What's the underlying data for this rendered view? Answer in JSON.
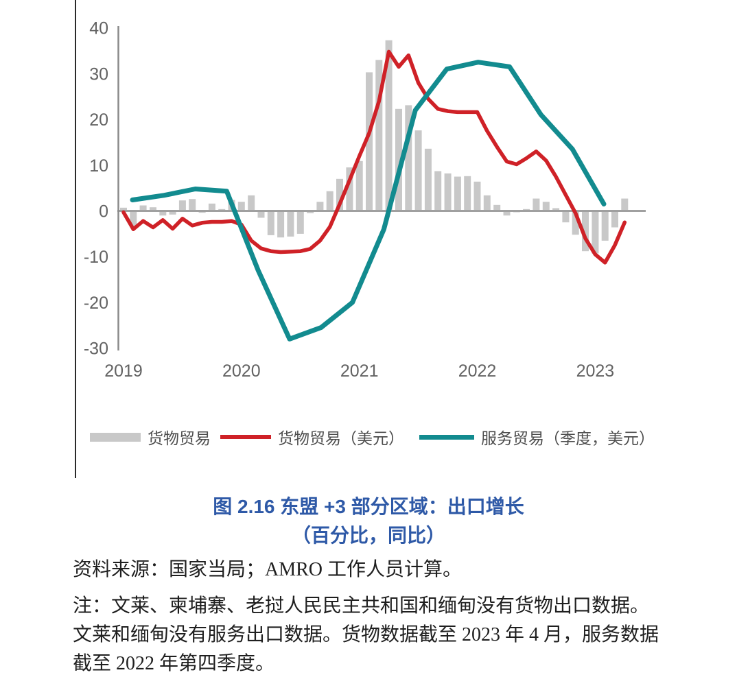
{
  "figure": {
    "title_line1": "图 2.16 东盟 +3 部分区域：出口增长",
    "title_line2": "（百分比，同比）",
    "title_color": "#2e59a7",
    "source_text": "资料来源：国家当局；AMRO 工作人员计算。",
    "note_text": "注：文莱、柬埔寨、老挝人民民主共和国和缅甸没有货物出口数据。\n文莱和缅甸没有服务出口数据。货物数据截至 2023 年 4 月，服务数据\n截至 2022 年第四季度。"
  },
  "legend": {
    "position": "below",
    "items": [
      {
        "key": "goods-trade-bars",
        "label": "货物贸易",
        "swatch": "bar",
        "color": "#c8c8c8"
      },
      {
        "key": "goods-trade-usd-line",
        "label": "货物贸易（美元）",
        "swatch": "line",
        "color": "#cf2127"
      },
      {
        "key": "services-trade-usd-line",
        "label": "服务贸易（季度，美元）",
        "swatch": "line",
        "color": "#128b8f"
      }
    ]
  },
  "chart_data": {
    "type": "bar+line",
    "title": "图 2.16 东盟 +3 部分区域：出口增长（百分比，同比）",
    "xlabel": "",
    "ylabel": "",
    "ylim": [
      -30,
      40
    ],
    "yticks": [
      40,
      30,
      20,
      10,
      0,
      -10,
      -20,
      -30
    ],
    "grid": false,
    "x_year_labels": [
      "2019",
      "2020",
      "2021",
      "2022",
      "2023"
    ],
    "axis_color": "#8a8a8a",
    "zero_line_color": "#a0a0a0",
    "series": [
      {
        "key": "goods-trade-bars",
        "name": "货物贸易",
        "kind": "bar",
        "freq": "monthly",
        "start": "2019-01",
        "color": "#c8c8c8",
        "values": [
          0.7,
          -3.6,
          1.2,
          0.8,
          -1.0,
          -0.8,
          2.3,
          2.6,
          -0.4,
          1.6,
          0.4,
          2.4,
          2.0,
          3.4,
          -1.5,
          -5.3,
          -5.8,
          -5.6,
          -5.0,
          -0.5,
          2.0,
          4.3,
          7.0,
          9.5,
          10.9,
          30.3,
          33.0,
          37.3,
          22.3,
          23.1,
          17.6,
          13.6,
          8.7,
          8.2,
          7.5,
          7.6,
          6.4,
          3.4,
          1.3,
          -1.0,
          -0.3,
          0.4,
          2.7,
          2.0,
          0.6,
          -2.5,
          -5.2,
          -8.8,
          -9.3,
          -6.5,
          -3.6,
          2.7
        ]
      },
      {
        "key": "goods-trade-usd-line",
        "name": "货物贸易（美元）",
        "kind": "line",
        "freq": "monthly",
        "start": "2019-01",
        "color": "#cf2127",
        "width": 5.5,
        "values": [
          -0.3,
          -4.0,
          -2.2,
          -3.6,
          -2.0,
          -3.9,
          -1.7,
          -3.2,
          -2.6,
          -2.4,
          -2.4,
          -2.2,
          -3.0,
          -6.5,
          -8.2,
          -8.8,
          -9.0,
          -8.9,
          -8.8,
          -8.3,
          -6.5,
          -3.5,
          1.5,
          6.7,
          12.0,
          17.0,
          24.0,
          34.8,
          31.5,
          34.0,
          28.0,
          24.5,
          22.3,
          21.8,
          21.6,
          21.6,
          21.6,
          17.5,
          14.0,
          10.8,
          10.2,
          11.5,
          13.0,
          11.0,
          7.5,
          3.5,
          -0.5,
          -6.0,
          -9.5,
          -11.3,
          -7.5,
          -2.5
        ]
      },
      {
        "key": "services-trade-usd-line",
        "name": "服务贸易（季度，美元）",
        "kind": "line",
        "freq": "quarterly",
        "start": "2019-Q1",
        "color": "#128b8f",
        "width": 7,
        "values": [
          2.4,
          3.4,
          4.8,
          4.3,
          -13.0,
          -28.0,
          -25.5,
          -20.0,
          -4.0,
          22.0,
          31.0,
          32.5,
          31.5,
          21.0,
          13.5,
          1.5
        ]
      }
    ]
  }
}
